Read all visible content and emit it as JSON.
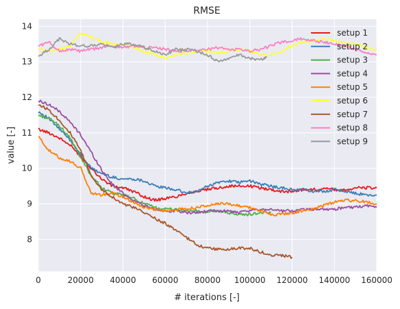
{
  "chart_data": {
    "type": "line",
    "title": "RMSE",
    "xlabel": "# iterations [-]",
    "ylabel": "value [-]",
    "xlim": [
      0,
      160000
    ],
    "ylim": [
      7.1,
      14.2
    ],
    "xticks": [
      0,
      20000,
      40000,
      60000,
      80000,
      100000,
      120000,
      140000,
      160000
    ],
    "yticks": [
      8,
      9,
      10,
      11,
      12,
      13,
      14
    ],
    "grid": true,
    "background": "#eaeaf2",
    "legend_position": "top-right",
    "series": [
      {
        "name": "setup 1",
        "color": "#e41a1c",
        "x": [
          0,
          5000,
          10000,
          15000,
          20000,
          25000,
          30000,
          35000,
          40000,
          45000,
          50000,
          55000,
          60000,
          65000,
          70000,
          75000,
          80000,
          85000,
          90000,
          95000,
          100000,
          105000,
          110000,
          115000,
          120000,
          125000,
          130000,
          135000,
          140000,
          145000,
          150000,
          155000,
          160000
        ],
        "y": [
          11.1,
          11.0,
          10.85,
          10.65,
          10.35,
          10.0,
          9.7,
          9.5,
          9.45,
          9.35,
          9.2,
          9.1,
          9.15,
          9.2,
          9.3,
          9.35,
          9.4,
          9.45,
          9.5,
          9.5,
          9.5,
          9.45,
          9.4,
          9.35,
          9.35,
          9.4,
          9.4,
          9.45,
          9.4,
          9.4,
          9.45,
          9.45,
          9.45
        ]
      },
      {
        "name": "setup 2",
        "color": "#377eb8",
        "x": [
          0,
          5000,
          10000,
          15000,
          20000,
          25000,
          30000,
          35000,
          40000,
          45000,
          50000,
          55000,
          60000,
          65000,
          70000,
          75000,
          80000,
          85000,
          90000,
          95000,
          100000,
          105000,
          110000,
          115000,
          120000,
          125000,
          130000,
          135000,
          140000,
          145000,
          150000,
          155000,
          160000
        ],
        "y": [
          11.6,
          11.4,
          11.1,
          10.8,
          10.4,
          10.0,
          9.85,
          9.75,
          9.7,
          9.7,
          9.65,
          9.5,
          9.45,
          9.4,
          9.3,
          9.35,
          9.5,
          9.6,
          9.65,
          9.6,
          9.65,
          9.55,
          9.5,
          9.45,
          9.4,
          9.4,
          9.35,
          9.35,
          9.4,
          9.35,
          9.3,
          9.25,
          9.25
        ]
      },
      {
        "name": "setup 3",
        "color": "#4daf4a",
        "x": [
          0,
          5000,
          10000,
          15000,
          20000,
          25000,
          30000,
          35000,
          40000,
          45000,
          50000,
          55000,
          60000,
          65000,
          70000,
          75000,
          80000,
          85000,
          90000,
          95000,
          100000,
          105000,
          110000
        ],
        "y": [
          11.5,
          11.4,
          11.2,
          10.85,
          10.3,
          9.8,
          9.45,
          9.3,
          9.25,
          9.15,
          9.0,
          8.9,
          8.85,
          8.85,
          8.8,
          8.8,
          8.75,
          8.8,
          8.75,
          8.7,
          8.7,
          8.75,
          8.75
        ]
      },
      {
        "name": "setup 4",
        "color": "#984ea3",
        "x": [
          0,
          5000,
          10000,
          15000,
          20000,
          25000,
          30000,
          35000,
          40000,
          45000,
          50000,
          55000,
          60000,
          65000,
          70000,
          75000,
          80000,
          85000,
          90000,
          95000,
          100000,
          105000,
          110000,
          115000,
          120000,
          125000,
          130000,
          135000,
          140000,
          145000,
          150000,
          155000,
          160000
        ],
        "y": [
          11.9,
          11.8,
          11.6,
          11.3,
          10.95,
          10.45,
          9.95,
          9.55,
          9.3,
          9.1,
          8.95,
          8.85,
          8.8,
          8.8,
          8.75,
          8.75,
          8.8,
          8.8,
          8.8,
          8.75,
          8.8,
          8.85,
          8.85,
          8.8,
          8.8,
          8.85,
          8.85,
          8.85,
          8.85,
          8.9,
          8.9,
          8.95,
          8.9
        ]
      },
      {
        "name": "setup 5",
        "color": "#ff7f00",
        "x": [
          0,
          5000,
          10000,
          15000,
          20000,
          25000,
          30000,
          35000,
          40000,
          45000,
          50000,
          55000,
          60000,
          65000,
          70000,
          75000,
          80000,
          85000,
          90000,
          95000,
          100000,
          105000,
          110000,
          115000,
          120000,
          125000,
          130000,
          135000,
          140000,
          145000,
          150000,
          155000,
          160000
        ],
        "y": [
          10.9,
          10.5,
          10.3,
          10.2,
          10.0,
          9.3,
          9.25,
          9.3,
          9.2,
          9.05,
          8.9,
          8.85,
          8.8,
          8.85,
          8.85,
          8.9,
          8.95,
          9.0,
          9.0,
          8.95,
          8.9,
          8.8,
          8.7,
          8.7,
          8.75,
          8.8,
          8.85,
          8.95,
          9.05,
          9.1,
          9.1,
          9.05,
          9.0
        ]
      },
      {
        "name": "setup 6",
        "color": "#ffff33",
        "x": [
          0,
          5000,
          10000,
          15000,
          20000,
          25000,
          30000,
          35000,
          40000,
          45000,
          50000,
          55000,
          60000,
          65000,
          70000,
          75000,
          80000,
          85000,
          90000,
          95000,
          100000,
          105000,
          110000,
          115000,
          120000,
          125000,
          130000,
          135000,
          140000,
          145000,
          150000,
          155000,
          160000
        ],
        "y": [
          13.35,
          13.3,
          13.35,
          13.45,
          13.8,
          13.7,
          13.55,
          13.5,
          13.5,
          13.4,
          13.3,
          13.2,
          13.1,
          13.2,
          13.25,
          13.3,
          13.3,
          13.25,
          13.3,
          13.35,
          13.3,
          13.2,
          13.2,
          13.3,
          13.45,
          13.55,
          13.6,
          13.65,
          13.6,
          13.55,
          13.5,
          13.4,
          13.35
        ]
      },
      {
        "name": "setup 7",
        "color": "#a65628",
        "x": [
          0,
          5000,
          10000,
          15000,
          20000,
          25000,
          30000,
          35000,
          40000,
          45000,
          50000,
          55000,
          60000,
          65000,
          70000,
          75000,
          80000,
          85000,
          90000,
          95000,
          100000,
          105000,
          110000,
          115000,
          120000
        ],
        "y": [
          11.8,
          11.65,
          11.35,
          11.0,
          10.5,
          9.8,
          9.4,
          9.2,
          9.0,
          8.9,
          8.75,
          8.6,
          8.45,
          8.25,
          8.05,
          7.85,
          7.75,
          7.72,
          7.72,
          7.75,
          7.75,
          7.65,
          7.55,
          7.55,
          7.5
        ]
      },
      {
        "name": "setup 8",
        "color": "#f781bf",
        "x": [
          0,
          5000,
          10000,
          15000,
          20000,
          25000,
          30000,
          35000,
          40000,
          45000,
          50000,
          55000,
          60000,
          65000,
          70000,
          75000,
          80000,
          85000,
          90000,
          95000,
          100000,
          105000,
          110000,
          115000,
          120000,
          125000,
          130000,
          135000,
          140000,
          145000,
          150000,
          155000,
          160000
        ],
        "y": [
          13.45,
          13.55,
          13.3,
          13.35,
          13.3,
          13.35,
          13.4,
          13.45,
          13.4,
          13.45,
          13.4,
          13.4,
          13.35,
          13.3,
          13.3,
          13.35,
          13.35,
          13.4,
          13.35,
          13.35,
          13.3,
          13.35,
          13.45,
          13.55,
          13.6,
          13.65,
          13.6,
          13.55,
          13.5,
          13.45,
          13.35,
          13.25,
          13.2
        ]
      },
      {
        "name": "setup 9",
        "color": "#999999",
        "x": [
          0,
          5000,
          10000,
          15000,
          20000,
          25000,
          30000,
          35000,
          40000,
          45000,
          50000,
          55000,
          60000,
          65000,
          70000,
          75000,
          80000,
          85000,
          90000,
          95000,
          100000,
          105000,
          108000
        ],
        "y": [
          13.15,
          13.35,
          13.65,
          13.5,
          13.45,
          13.45,
          13.5,
          13.4,
          13.5,
          13.5,
          13.4,
          13.3,
          13.2,
          13.35,
          13.35,
          13.3,
          13.2,
          13.0,
          13.1,
          13.2,
          13.1,
          13.05,
          13.15
        ]
      }
    ]
  }
}
